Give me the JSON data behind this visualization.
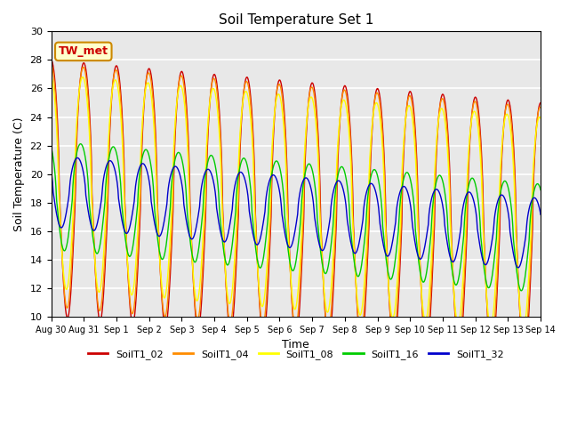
{
  "title": "Soil Temperature Set 1",
  "xlabel": "Time",
  "ylabel": "Soil Temperature (C)",
  "ylim": [
    10,
    30
  ],
  "xlim_days": [
    0,
    15
  ],
  "annotation": "TW_met",
  "bg_color": "#e8e8e8",
  "series_names": [
    "SoilT1_02",
    "SoilT1_04",
    "SoilT1_08",
    "SoilT1_16",
    "SoilT1_32"
  ],
  "colors": [
    "#cc0000",
    "#ff8c00",
    "#ffff00",
    "#00cc00",
    "#0000cc"
  ],
  "xtick_labels": [
    "Aug 30",
    "Aug 31",
    "Sep 1",
    "Sep 2",
    "Sep 3",
    "Sep 4",
    "Sep 5",
    "Sep 6",
    "Sep 7",
    "Sep 8",
    "Sep 9",
    "Sep 10",
    "Sep 11",
    "Sep 12",
    "Sep 13",
    "Sep 14"
  ],
  "xtick_positions": [
    0,
    1,
    2,
    3,
    4,
    5,
    6,
    7,
    8,
    9,
    10,
    11,
    12,
    13,
    14,
    15
  ],
  "ytick_positions": [
    10,
    12,
    14,
    16,
    18,
    20,
    22,
    24,
    26,
    28,
    30
  ],
  "configs": {
    "SoilT1_02": {
      "amp": 9.0,
      "phase_lag": 0.0,
      "mean": 19.0
    },
    "SoilT1_04": {
      "amp": 8.5,
      "phase_lag": 0.08,
      "mean": 19.2
    },
    "SoilT1_08": {
      "amp": 7.5,
      "phase_lag": 0.2,
      "mean": 19.5
    },
    "SoilT1_16": {
      "amp": 3.8,
      "phase_lag": 0.6,
      "mean": 18.5
    },
    "SoilT1_32": {
      "amp": 2.5,
      "phase_lag": 1.2,
      "mean": 18.8
    }
  }
}
